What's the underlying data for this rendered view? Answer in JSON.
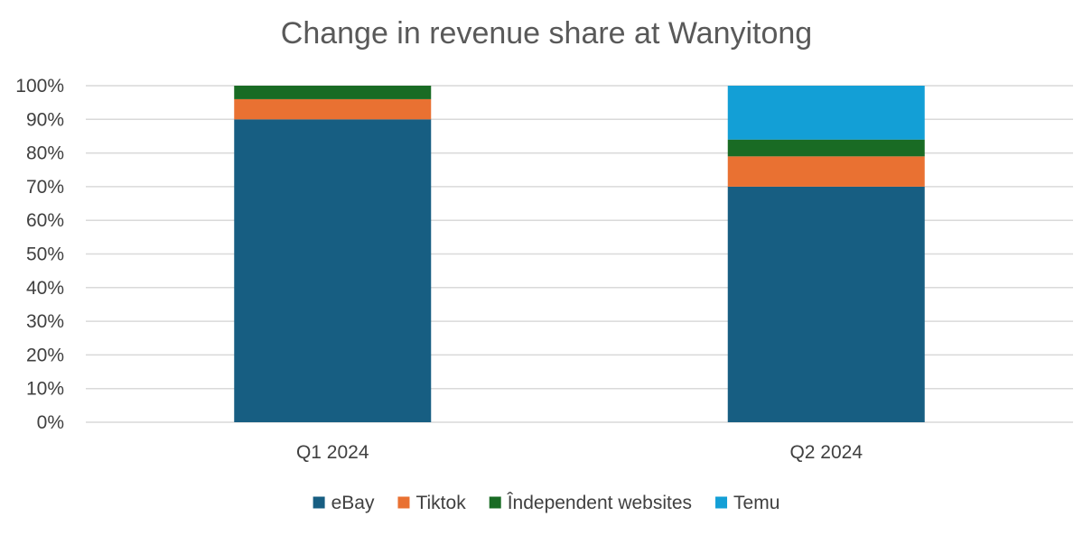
{
  "chart_data": {
    "type": "bar",
    "stacked": true,
    "title": "Change in revenue share at Wanyitong",
    "xlabel": "",
    "ylabel": "",
    "categories": [
      "Q1 2024",
      "Q2 2024"
    ],
    "ylim": [
      0,
      100
    ],
    "y_ticks": [
      "0%",
      "10%",
      "20%",
      "30%",
      "40%",
      "50%",
      "60%",
      "70%",
      "80%",
      "90%",
      "100%"
    ],
    "grid": true,
    "legend_position": "bottom",
    "series": [
      {
        "name": "eBay",
        "values": [
          90,
          70
        ],
        "color": "#175e82"
      },
      {
        "name": "Tiktok",
        "values": [
          6,
          9
        ],
        "color": "#e97132"
      },
      {
        "name": "Îndependent websites",
        "values": [
          4,
          5
        ],
        "color": "#196b24"
      },
      {
        "name": "Temu",
        "values": [
          0,
          16
        ],
        "color": "#139fd6"
      }
    ]
  }
}
